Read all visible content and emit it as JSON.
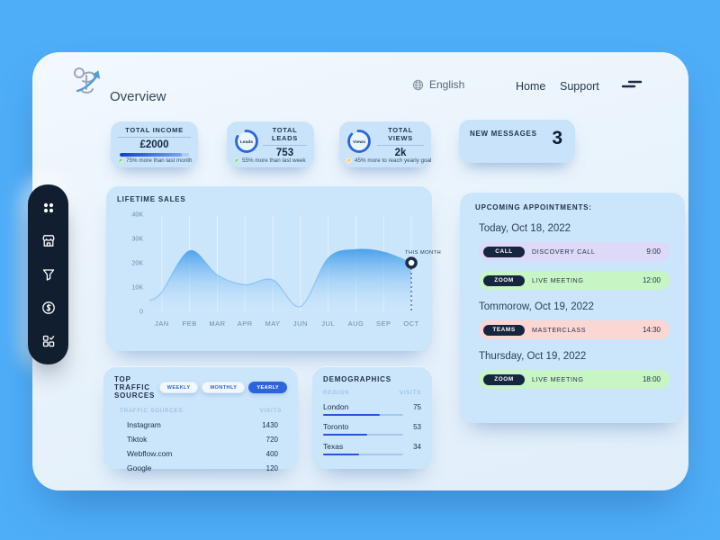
{
  "header": {
    "title": "Overview",
    "language": "English",
    "nav": [
      {
        "label": "Home"
      },
      {
        "label": "Support"
      }
    ]
  },
  "stats": {
    "income": {
      "title": "TOTAL INCOME",
      "value": "£2000",
      "note": "75% more than last month",
      "progress_pct": 90
    },
    "leads": {
      "title": "TOTAL LEADS",
      "value": "753",
      "badge": "Leads",
      "note": "55% more than last week",
      "ring_pct": 84
    },
    "views": {
      "title": "TOTAL VIEWS",
      "value": "2k",
      "badge": "Views",
      "note": "45% more to reach yearly goal",
      "ring_pct": 88
    },
    "messages": {
      "title": "NEW MESSAGES",
      "value": "3"
    }
  },
  "chart_data": {
    "type": "area",
    "title": "LIFETIME SALES",
    "categories": [
      "JAN",
      "FEB",
      "MAR",
      "APR",
      "MAY",
      "JUN",
      "JUL",
      "AUG",
      "SEP",
      "OCT"
    ],
    "values": [
      8000,
      25000,
      15000,
      11000,
      13000,
      2000,
      22000,
      25500,
      24500,
      20000
    ],
    "ylim": [
      0,
      40000
    ],
    "yticks": [
      {
        "v": 0,
        "label": "0"
      },
      {
        "v": 10000,
        "label": "10K"
      },
      {
        "v": 20000,
        "label": "20K"
      },
      {
        "v": 30000,
        "label": "30K"
      },
      {
        "v": 40000,
        "label": "40K"
      }
    ],
    "grid": "vertical",
    "annotation": {
      "label": "THIS MONTH",
      "category": "OCT",
      "value": 20000
    }
  },
  "traffic": {
    "title": "TOP TRAFFIC SOURCES",
    "tabs": [
      {
        "label": "WEEKLY",
        "active": false
      },
      {
        "label": "MONTHLY",
        "active": false
      },
      {
        "label": "YEARLY",
        "active": true
      }
    ],
    "columns": [
      "TRAFFIC SOURCES",
      "VISITS"
    ],
    "rows": [
      {
        "source": "Instagram",
        "visits": "1430"
      },
      {
        "source": "Tiktok",
        "visits": "720"
      },
      {
        "source": "Webflow.com",
        "visits": "400"
      },
      {
        "source": "Google",
        "visits": "120"
      }
    ]
  },
  "demographics": {
    "title": "DEMOGRAPHICS",
    "columns": [
      "REGION",
      "VISITS"
    ],
    "rows": [
      {
        "region": "London",
        "visits": "75",
        "bar_pct": 70
      },
      {
        "region": "Toronto",
        "visits": "53",
        "bar_pct": 55
      },
      {
        "region": "Texas",
        "visits": "34",
        "bar_pct": 45
      }
    ]
  },
  "appointments": {
    "title": "UPCOMING APPOINTMENTS:",
    "groups": [
      {
        "date": "Today, Oct 18, 2022",
        "items": [
          {
            "badge": "CALL",
            "label": "DISCOVERY CALL",
            "time": "9:00",
            "row_color": "#ded9f6"
          },
          {
            "badge": "ZOOM",
            "label": "LIVE MEETING",
            "time": "12:00",
            "row_color": "#c7f6c4"
          }
        ]
      },
      {
        "date": "Tommorow, Oct 19, 2022",
        "items": [
          {
            "badge": "TEAMS",
            "label": "MASTERCLASS",
            "time": "14:30",
            "row_color": "#fbd6d2"
          }
        ]
      },
      {
        "date": "Thursday, Oct 19, 2022",
        "items": [
          {
            "badge": "ZOOM",
            "label": "LIVE MEETING",
            "time": "18:00",
            "row_color": "#c7f6c4"
          }
        ]
      }
    ]
  },
  "colors": {
    "background": "#4FAEF8",
    "accent_blue": "#2d64dd",
    "badge_navy": "#16263e",
    "trend_up_green": "#1d8a4e",
    "trend_warn_orange": "#d98a0c",
    "area_fill_top": "#3f9be9"
  }
}
